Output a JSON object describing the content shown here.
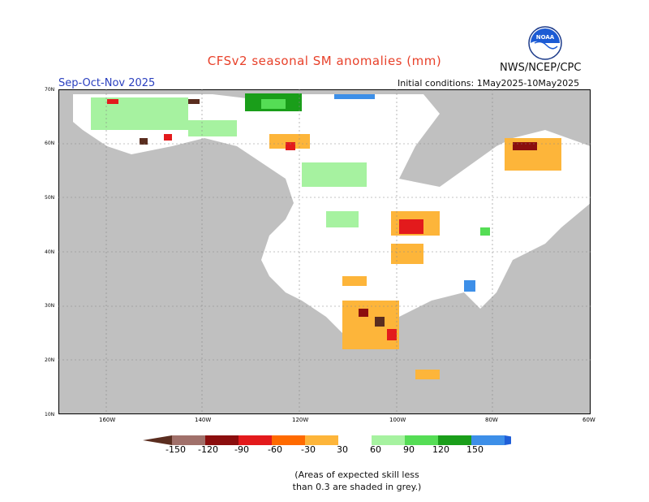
{
  "title": "CFSv2 seasonal SM anomalies (mm)",
  "season": "Sep-Oct-Nov 2025",
  "initial_conditions": "Initial conditions: 1May2025-10May2025",
  "agency": "NWS/NCEP/CPC",
  "logo_text": "NOAA",
  "lat_labels": [
    "70N",
    "60N",
    "50N",
    "40N",
    "30N",
    "20N",
    "10N"
  ],
  "lon_labels": [
    "160W",
    "140W",
    "120W",
    "100W",
    "80W",
    "60W"
  ],
  "colorbar": {
    "labels": [
      "-150",
      "-120",
      "-90",
      "-60",
      "-30",
      "30",
      "60",
      "90",
      "120",
      "150"
    ],
    "colors": [
      "#5a2d1f",
      "#a0706a",
      "#8b0e0e",
      "#e31a1c",
      "#ff6a00",
      "#fdb53a",
      "#ffffff",
      "#a6f2a0",
      "#55dd55",
      "#1a9e1a",
      "#3d8fe8",
      "#1f5fd8"
    ]
  },
  "note": "(Areas of expected skill less\nthan 0.3 are shaded in grey.)",
  "colors": {
    "land_grey": "#c0c0c0",
    "title": "#e8412a",
    "season": "#2a3fbf"
  }
}
